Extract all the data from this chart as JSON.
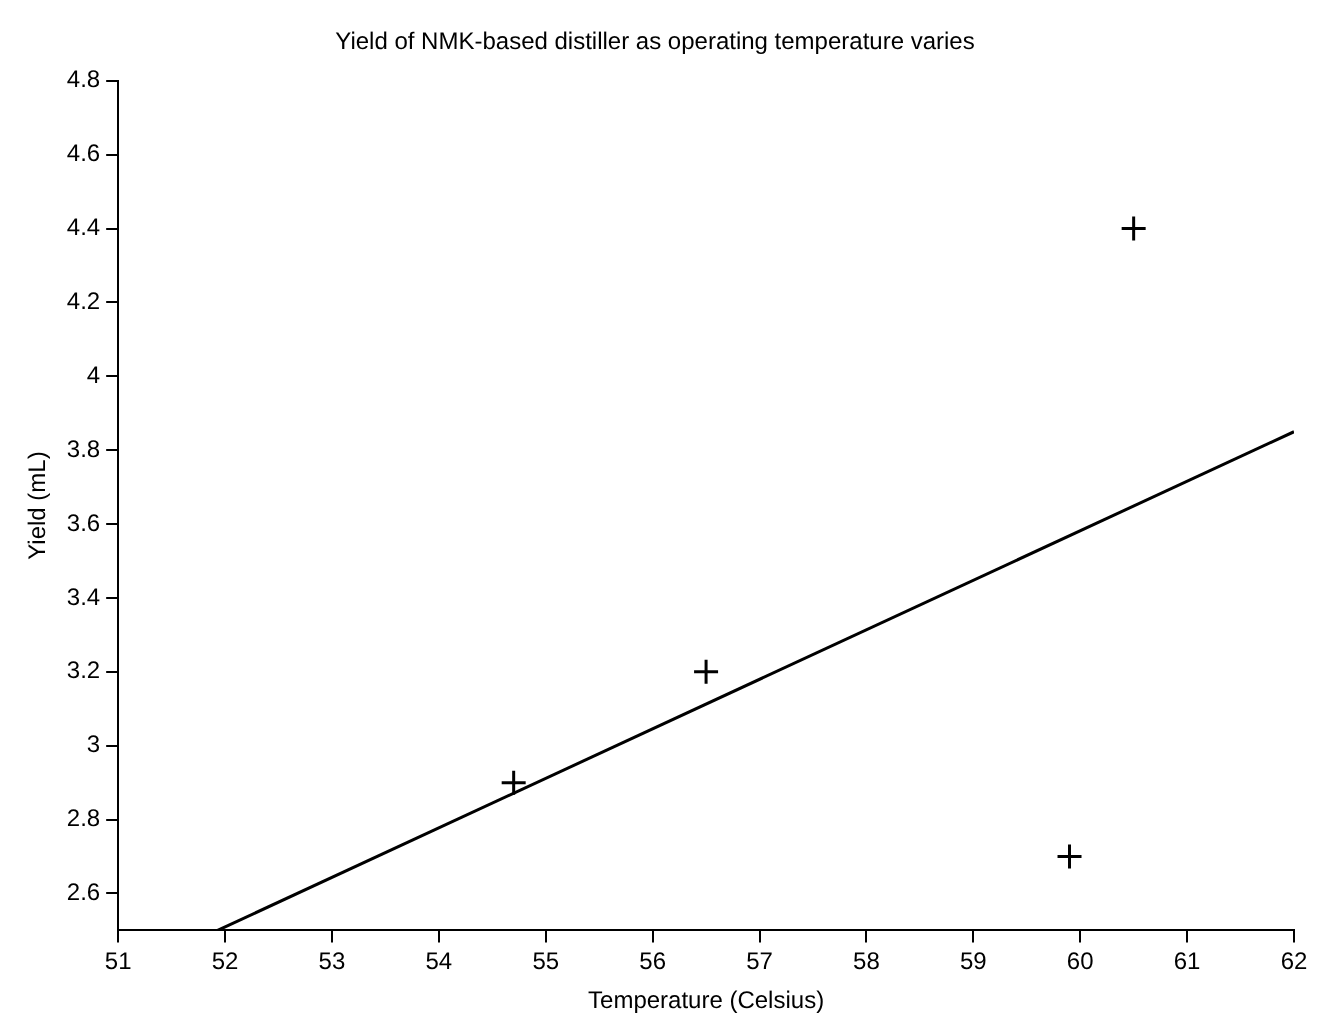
{
  "chart_data": {
    "type": "scatter",
    "title": "Yield of NMK-based distiller as operating temperature varies",
    "xlabel": "Temperature (Celsius)",
    "ylabel": "Yield (mL)",
    "series": [
      {
        "type": "scatter",
        "color": "#000000",
        "x": [
          54.7,
          56.5,
          59.9,
          60.5
        ],
        "values": [
          2.9,
          3.2,
          2.7,
          4.4
        ],
        "marker": "cross"
      },
      {
        "type": "line",
        "color": "#000000",
        "x": [
          51.93,
          62
        ],
        "values": [
          2.5,
          3.85
        ],
        "marker": "none",
        "line_style": "solid"
      }
    ],
    "xlim": [
      51,
      62
    ],
    "xticks": [
      51,
      52,
      53,
      54,
      55,
      56,
      57,
      58,
      59,
      60,
      61,
      62
    ],
    "ylim": [
      2.5,
      4.8
    ],
    "yticks": [
      2.6,
      2.8,
      3,
      3.2,
      3.4,
      3.6,
      3.8,
      4,
      4.2,
      4.4,
      4.6,
      4.8
    ],
    "grid": false,
    "legend": false
  }
}
